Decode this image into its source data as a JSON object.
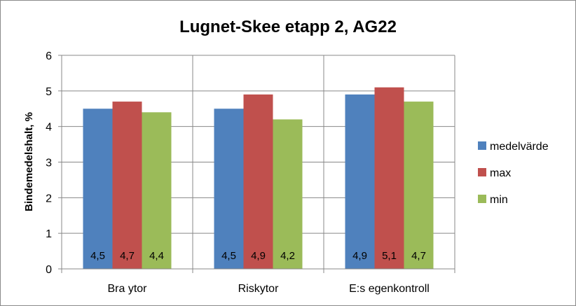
{
  "chart_data": {
    "type": "bar",
    "title": "Lugnet-Skee etapp 2, AG22",
    "xlabel": "",
    "ylabel": "Bindemedelshalt, %",
    "ylim": [
      0,
      6
    ],
    "yticks": [
      "0",
      "1",
      "2",
      "3",
      "4",
      "5",
      "6"
    ],
    "categories": [
      "Bra ytor",
      "Riskytor",
      "E:s egenkontroll"
    ],
    "series": [
      {
        "name": "medelvärde",
        "color": "#4f81bd",
        "values": [
          4.5,
          4.5,
          4.9
        ],
        "labels": [
          "4,5",
          "4,5",
          "4,9"
        ]
      },
      {
        "name": "max",
        "color": "#c0504d",
        "values": [
          4.7,
          4.9,
          5.1
        ],
        "labels": [
          "4,7",
          "4,9",
          "5,1"
        ]
      },
      {
        "name": "min",
        "color": "#9bbb59",
        "values": [
          4.4,
          4.2,
          4.7
        ],
        "labels": [
          "4,4",
          "4,2",
          "4,7"
        ]
      }
    ],
    "grid": true,
    "legend_position": "right"
  }
}
